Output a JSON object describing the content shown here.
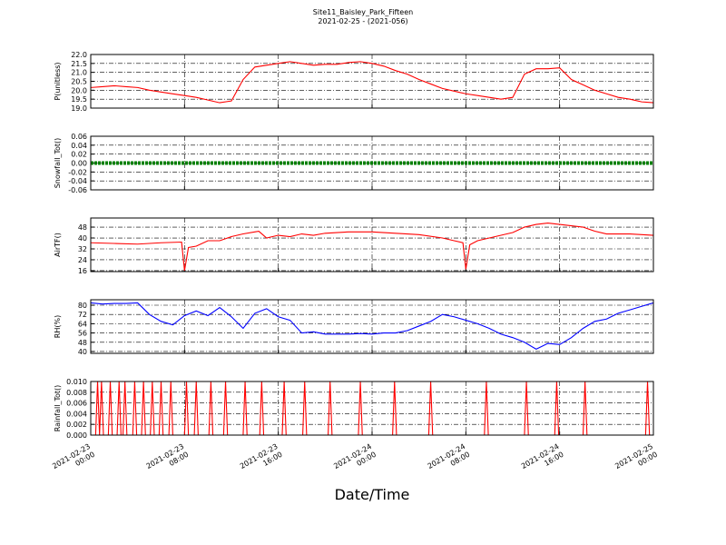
{
  "figure": {
    "title": "Site11_Baisley_Park_Fifteen",
    "subtitle": "2021-02-25 - (2021-056)",
    "xlabel": "Date/Time",
    "xlim": [
      "2021-02-23 00:00",
      "2021-02-25 00:00"
    ],
    "xticks": [
      "2021-02-23 00:00",
      "2021-02-23 08:00",
      "2021-02-23 16:00",
      "2021-02-24 00:00",
      "2021-02-24 08:00",
      "2021-02-24 16:00",
      "2021-02-25 00:00"
    ],
    "x": [
      "2021-02-23 00:00",
      "2021-02-23 01:00",
      "2021-02-23 02:00",
      "2021-02-23 03:00",
      "2021-02-23 04:00",
      "2021-02-23 05:00",
      "2021-02-23 06:00",
      "2021-02-23 07:00",
      "2021-02-23 08:00",
      "2021-02-23 09:00",
      "2021-02-23 10:00",
      "2021-02-23 11:00",
      "2021-02-23 12:00",
      "2021-02-23 13:00",
      "2021-02-23 14:00",
      "2021-02-23 15:00",
      "2021-02-23 16:00",
      "2021-02-23 17:00",
      "2021-02-23 18:00",
      "2021-02-23 19:00",
      "2021-02-23 20:00",
      "2021-02-23 21:00",
      "2021-02-23 22:00",
      "2021-02-23 23:00",
      "2021-02-24 00:00",
      "2021-02-24 01:00",
      "2021-02-24 02:00",
      "2021-02-24 03:00",
      "2021-02-24 04:00",
      "2021-02-24 05:00",
      "2021-02-24 06:00",
      "2021-02-24 07:00",
      "2021-02-24 08:00",
      "2021-02-24 09:00",
      "2021-02-24 10:00",
      "2021-02-24 11:00",
      "2021-02-24 12:00",
      "2021-02-24 13:00",
      "2021-02-24 14:00",
      "2021-02-24 15:00",
      "2021-02-24 16:00",
      "2021-02-24 17:00",
      "2021-02-24 18:00",
      "2021-02-24 19:00",
      "2021-02-24 20:00",
      "2021-02-24 21:00",
      "2021-02-24 22:00",
      "2021-02-24 23:00",
      "2021-02-25 00:00"
    ]
  },
  "chart_data": [
    {
      "type": "line",
      "ylabel": "P(unitless)",
      "ylim": [
        19,
        22
      ],
      "grid": true,
      "yticks": [
        {
          "value": 19,
          "label": "19.0"
        },
        19.5,
        {
          "value": 20,
          "label": "20.0"
        },
        20.5,
        {
          "value": 21,
          "label": "21.0"
        },
        21.5,
        {
          "value": 22,
          "label": "22.0"
        }
      ],
      "series": [
        {
          "color": "#ff0000",
          "values": [
            20.15,
            20.2,
            20.25,
            20.2,
            20.15,
            20.0,
            19.9,
            19.8,
            19.7,
            19.6,
            19.45,
            19.3,
            19.4,
            20.6,
            21.3,
            21.4,
            21.5,
            21.6,
            21.5,
            21.4,
            21.45,
            21.45,
            21.55,
            21.6,
            21.5,
            21.35,
            21.1,
            20.9,
            20.6,
            20.35,
            20.1,
            19.95,
            19.8,
            19.7,
            19.6,
            19.5,
            19.6,
            20.9,
            21.2,
            21.2,
            21.25,
            20.6,
            20.3,
            20.0,
            19.8,
            19.6,
            19.5,
            19.35,
            19.3
          ]
        }
      ]
    },
    {
      "type": "line",
      "ylabel": "Snowfall_Tot()",
      "ylim": [
        -0.06,
        0.06
      ],
      "grid": true,
      "thick": true,
      "yticks": [
        -0.06,
        -0.04,
        -0.02,
        {
          "value": 0,
          "label": "0.00"
        },
        0.02,
        0.04,
        0.06
      ],
      "series": [
        {
          "color": "#008000",
          "values": [
            0,
            0,
            0,
            0,
            0,
            0,
            0,
            0,
            0,
            0,
            0,
            0,
            0,
            0,
            0,
            0,
            0,
            0,
            0,
            0,
            0,
            0,
            0,
            0,
            0,
            0,
            0,
            0,
            0,
            0,
            0,
            0,
            0,
            0,
            0,
            0,
            0,
            0,
            0,
            0,
            0,
            0,
            0,
            0,
            0,
            0,
            0,
            0,
            0
          ]
        }
      ]
    },
    {
      "type": "line",
      "ylabel": "AirTF()",
      "ylim": [
        15.3,
        54.7
      ],
      "grid": true,
      "yticks": [
        16,
        24,
        32,
        40,
        48
      ],
      "series": [
        {
          "color": "#ff0000",
          "x": [
            "2021-02-23 00:00",
            "2021-02-23 02:00",
            "2021-02-23 04:00",
            "2021-02-23 06:00",
            "2021-02-23 07:45",
            "2021-02-23 08:00",
            "2021-02-23 08:20",
            "2021-02-23 09:00",
            "2021-02-23 10:00",
            "2021-02-23 11:00",
            "2021-02-23 12:00",
            "2021-02-23 13:00",
            "2021-02-23 14:20",
            "2021-02-23 15:00",
            "2021-02-23 16:00",
            "2021-02-23 17:00",
            "2021-02-23 18:00",
            "2021-02-23 19:00",
            "2021-02-23 20:00",
            "2021-02-23 22:00",
            "2021-02-24 00:00",
            "2021-02-24 02:00",
            "2021-02-24 04:00",
            "2021-02-24 06:00",
            "2021-02-24 07:00",
            "2021-02-24 07:45",
            "2021-02-24 08:00",
            "2021-02-24 08:20",
            "2021-02-24 09:00",
            "2021-02-24 10:00",
            "2021-02-24 12:00",
            "2021-02-24 13:00",
            "2021-02-24 14:00",
            "2021-02-24 15:00",
            "2021-02-24 16:00",
            "2021-02-24 17:00",
            "2021-02-24 18:00",
            "2021-02-24 19:00",
            "2021-02-24 20:00",
            "2021-02-24 22:00",
            "2021-02-25 00:00"
          ],
          "values": [
            36.5,
            36,
            35.5,
            36.5,
            37,
            16,
            33,
            34,
            38,
            38,
            41,
            43,
            45,
            40,
            42,
            41,
            43,
            42,
            43.5,
            44.5,
            44.5,
            43.5,
            42.5,
            40,
            38,
            36.5,
            17,
            35,
            38,
            40,
            44,
            48,
            50,
            51,
            50,
            49,
            48,
            45,
            43,
            43,
            42
          ]
        }
      ]
    },
    {
      "type": "line",
      "ylabel": "RH(%)",
      "ylim": [
        38.4,
        84.7
      ],
      "grid": true,
      "yticks": [
        40,
        48,
        56,
        64,
        72,
        80
      ],
      "series": [
        {
          "color": "#0000ff",
          "values": [
            82,
            81,
            81.5,
            81.5,
            82,
            72,
            66,
            63,
            71,
            75,
            71,
            78,
            70,
            60,
            73,
            77,
            70,
            67,
            56,
            57,
            55,
            55,
            55,
            55.5,
            55,
            56,
            56,
            58,
            62,
            66,
            72,
            70,
            67,
            64,
            60,
            55,
            52,
            48,
            42,
            47,
            46,
            52,
            60,
            66,
            68,
            73,
            76,
            79,
            82
          ]
        }
      ]
    },
    {
      "type": "line",
      "ylabel": "Rainfall_Tot()",
      "ylim": [
        0,
        0.01
      ],
      "grid": true,
      "yticks": [
        {
          "value": 0,
          "label": "0.000"
        },
        0.002,
        0.004,
        0.006,
        0.008,
        {
          "value": 0.01,
          "label": "0.010"
        }
      ],
      "series": [
        {
          "color": "#ff0000",
          "x": [
            "2021-02-23 00:00",
            "2021-02-23 00:25",
            "2021-02-23 00:35",
            "2021-02-23 00:45",
            "2021-02-23 00:55",
            "2021-02-23 01:05",
            "2021-02-23 01:30",
            "2021-02-23 01:40",
            "2021-02-23 01:50",
            "2021-02-23 02:15",
            "2021-02-23 02:25",
            "2021-02-23 02:35",
            "2021-02-23 02:45",
            "2021-02-23 02:55",
            "2021-02-23 03:05",
            "2021-02-23 03:35",
            "2021-02-23 03:45",
            "2021-02-23 03:55",
            "2021-02-23 04:20",
            "2021-02-23 04:30",
            "2021-02-23 04:40",
            "2021-02-23 05:05",
            "2021-02-23 05:15",
            "2021-02-23 05:25",
            "2021-02-23 05:50",
            "2021-02-23 06:00",
            "2021-02-23 06:10",
            "2021-02-23 06:40",
            "2021-02-23 06:50",
            "2021-02-23 07:00",
            "2021-02-23 08:00",
            "2021-02-23 08:10",
            "2021-02-23 08:20",
            "2021-02-23 08:50",
            "2021-02-23 09:00",
            "2021-02-23 09:10",
            "2021-02-23 10:05",
            "2021-02-23 10:15",
            "2021-02-23 10:25",
            "2021-02-23 11:20",
            "2021-02-23 11:30",
            "2021-02-23 11:40",
            "2021-02-23 13:00",
            "2021-02-23 13:10",
            "2021-02-23 13:20",
            "2021-02-23 14:25",
            "2021-02-23 14:35",
            "2021-02-23 14:45",
            "2021-02-23 16:20",
            "2021-02-23 16:30",
            "2021-02-23 16:40",
            "2021-02-23 18:05",
            "2021-02-23 18:15",
            "2021-02-23 18:25",
            "2021-02-23 20:15",
            "2021-02-23 20:25",
            "2021-02-23 20:35",
            "2021-02-23 22:50",
            "2021-02-23 23:00",
            "2021-02-23 23:10",
            "2021-02-24 01:45",
            "2021-02-24 01:55",
            "2021-02-24 02:05",
            "2021-02-24 04:50",
            "2021-02-24 05:00",
            "2021-02-24 05:10",
            "2021-02-24 09:35",
            "2021-02-24 09:45",
            "2021-02-24 09:55",
            "2021-02-24 13:00",
            "2021-02-24 13:10",
            "2021-02-24 13:20",
            "2021-02-24 15:35",
            "2021-02-24 15:45",
            "2021-02-24 15:55",
            "2021-02-24 18:00",
            "2021-02-24 18:10",
            "2021-02-24 18:20",
            "2021-02-24 23:20",
            "2021-02-24 23:30",
            "2021-02-24 23:40",
            "2021-02-25 00:00"
          ],
          "values": [
            0,
            0,
            0.01,
            0,
            0.01,
            0,
            0,
            0.01,
            0,
            0,
            0.01,
            0,
            0,
            0.01,
            0,
            0,
            0.01,
            0,
            0,
            0.01,
            0,
            0,
            0.01,
            0,
            0,
            0.01,
            0,
            0,
            0.01,
            0,
            0,
            0.01,
            0,
            0,
            0.01,
            0,
            0,
            0.01,
            0,
            0,
            0.01,
            0,
            0,
            0.01,
            0,
            0,
            0.01,
            0,
            0,
            0.01,
            0,
            0,
            0.01,
            0,
            0,
            0.01,
            0,
            0,
            0.01,
            0,
            0,
            0.01,
            0,
            0,
            0.01,
            0,
            0,
            0.01,
            0,
            0,
            0.01,
            0,
            0,
            0.01,
            0,
            0,
            0.01,
            0,
            0,
            0.01,
            0,
            0
          ]
        }
      ]
    }
  ]
}
